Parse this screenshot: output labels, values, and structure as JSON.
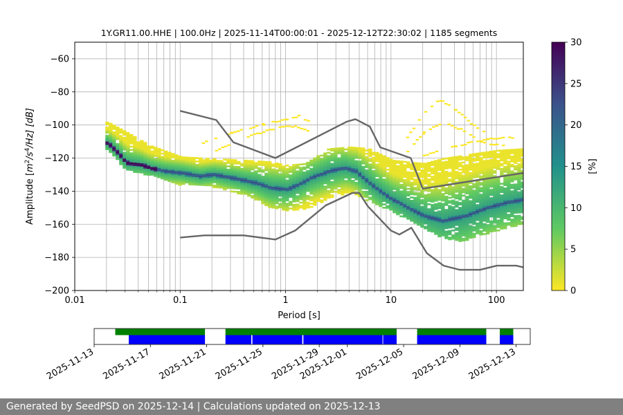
{
  "chart_data": {
    "type": "heatmap",
    "title": "1Y.GR11.00.HHE | 100.0Hz | 2025-11-14T00:00:01 - 2025-12-12T22:30:02 | 1185 segments",
    "xlabel": "Period [s]",
    "ylabel_parts": {
      "prefix": "Amplitude [",
      "m": "m",
      "two": "2",
      "slash_s": "/s",
      "four": "4",
      "hz": "/Hz] [dB]"
    },
    "x_scale": "log",
    "xlim": [
      0.01,
      180
    ],
    "ylim": [
      -200,
      -50
    ],
    "x_ticks": [
      {
        "v": 0.01,
        "label": "0.01"
      },
      {
        "v": 0.1,
        "label": "0.1"
      },
      {
        "v": 1,
        "label": "1"
      },
      {
        "v": 10,
        "label": "10"
      },
      {
        "v": 100,
        "label": "100"
      }
    ],
    "y_ticks": [
      {
        "v": -60,
        "label": "−60"
      },
      {
        "v": -80,
        "label": "−80"
      },
      {
        "v": -100,
        "label": "−100"
      },
      {
        "v": -120,
        "label": "−120"
      },
      {
        "v": -140,
        "label": "−140"
      },
      {
        "v": -160,
        "label": "−160"
      },
      {
        "v": -180,
        "label": "−180"
      },
      {
        "v": -200,
        "label": "−200"
      }
    ],
    "grid": true,
    "colorbar": {
      "label": "[%]",
      "range": [
        0,
        30
      ],
      "ticks": [
        {
          "v": 0,
          "label": "0"
        },
        {
          "v": 5,
          "label": "5"
        },
        {
          "v": 10,
          "label": "10"
        },
        {
          "v": 15,
          "label": "15"
        },
        {
          "v": 20,
          "label": "20"
        },
        {
          "v": 25,
          "label": "25"
        },
        {
          "v": 30,
          "label": "30"
        }
      ],
      "colormap": "viridis_r"
    },
    "mode_curve": [
      [
        0.02,
        -111
      ],
      [
        0.025,
        -117
      ],
      [
        0.03,
        -123
      ],
      [
        0.04,
        -124
      ],
      [
        0.05,
        -126
      ],
      [
        0.07,
        -128
      ],
      [
        0.1,
        -129
      ],
      [
        0.15,
        -131
      ],
      [
        0.2,
        -130
      ],
      [
        0.3,
        -132
      ],
      [
        0.5,
        -135
      ],
      [
        0.7,
        -138
      ],
      [
        1.0,
        -139
      ],
      [
        1.3,
        -136
      ],
      [
        1.7,
        -132
      ],
      [
        2.5,
        -128
      ],
      [
        3.5,
        -126
      ],
      [
        4.5,
        -128
      ],
      [
        6,
        -135
      ],
      [
        8,
        -141
      ],
      [
        10,
        -145
      ],
      [
        15,
        -151
      ],
      [
        20,
        -155
      ],
      [
        30,
        -158
      ],
      [
        50,
        -155
      ],
      [
        80,
        -150
      ],
      [
        120,
        -147
      ],
      [
        180,
        -145
      ]
    ],
    "band_lower": [
      [
        0.02,
        -115
      ],
      [
        0.03,
        -127
      ],
      [
        0.05,
        -130
      ],
      [
        0.1,
        -136
      ],
      [
        0.2,
        -137
      ],
      [
        0.4,
        -142
      ],
      [
        0.7,
        -150
      ],
      [
        1.0,
        -152
      ],
      [
        1.5,
        -151
      ],
      [
        2.5,
        -144
      ],
      [
        4,
        -140
      ],
      [
        6,
        -146
      ],
      [
        10,
        -152
      ],
      [
        20,
        -162
      ],
      [
        30,
        -168
      ],
      [
        45,
        -170
      ],
      [
        70,
        -166
      ],
      [
        120,
        -162
      ],
      [
        180,
        -159
      ]
    ],
    "band_upper": [
      [
        0.02,
        -98
      ],
      [
        0.03,
        -104
      ],
      [
        0.05,
        -112
      ],
      [
        0.1,
        -119
      ],
      [
        0.2,
        -120
      ],
      [
        0.4,
        -121
      ],
      [
        0.7,
        -122
      ],
      [
        1.0,
        -124
      ],
      [
        1.5,
        -123
      ],
      [
        2.5,
        -114
      ],
      [
        4,
        -113
      ],
      [
        6,
        -114
      ],
      [
        10,
        -121
      ],
      [
        20,
        -123
      ],
      [
        30,
        -120
      ],
      [
        60,
        -117
      ],
      [
        100,
        -115
      ],
      [
        180,
        -114
      ]
    ],
    "sparse_arcs": [
      [
        [
          0.15,
          -111
        ],
        [
          0.3,
          -104
        ],
        [
          0.6,
          -99
        ],
        [
          1.0,
          -96
        ],
        [
          1.3,
          -94
        ],
        [
          1.6,
          -97
        ]
      ],
      [
        [
          0.2,
          -116
        ],
        [
          0.4,
          -107
        ],
        [
          0.8,
          -101
        ],
        [
          1.2,
          -100
        ],
        [
          1.6,
          -103
        ]
      ],
      [
        [
          13,
          -110
        ],
        [
          18,
          -96
        ],
        [
          25,
          -86
        ],
        [
          30,
          -85
        ],
        [
          40,
          -90
        ],
        [
          60,
          -100
        ],
        [
          80,
          -105
        ]
      ],
      [
        [
          14,
          -115
        ],
        [
          20,
          -104
        ],
        [
          30,
          -98
        ],
        [
          45,
          -102
        ],
        [
          70,
          -110
        ],
        [
          120,
          -112
        ]
      ],
      [
        [
          20,
          -118
        ],
        [
          40,
          -112
        ],
        [
          80,
          -108
        ],
        [
          150,
          -107
        ]
      ]
    ],
    "nhnm": [
      [
        0.1,
        -91.5
      ],
      [
        0.22,
        -97
      ],
      [
        0.32,
        -110.5
      ],
      [
        0.8,
        -120
      ],
      [
        3.8,
        -98
      ],
      [
        4.6,
        -96.5
      ],
      [
        6.3,
        -101
      ],
      [
        7.9,
        -113.5
      ],
      [
        15.4,
        -120
      ],
      [
        20,
        -138.5
      ],
      [
        180,
        -129
      ]
    ],
    "nlnm": [
      [
        0.1,
        -168
      ],
      [
        0.17,
        -166.7
      ],
      [
        0.4,
        -166.7
      ],
      [
        0.8,
        -169.2
      ],
      [
        1.24,
        -163.7
      ],
      [
        2.4,
        -148.6
      ],
      [
        4.3,
        -141.1
      ],
      [
        5.0,
        -141.1
      ],
      [
        6.0,
        -149
      ],
      [
        10,
        -163.8
      ],
      [
        12,
        -166.2
      ],
      [
        15.6,
        -162.1
      ],
      [
        21.9,
        -177.5
      ],
      [
        31.6,
        -185
      ],
      [
        45,
        -187.5
      ],
      [
        70,
        -187.5
      ],
      [
        101,
        -185
      ],
      [
        154,
        -185
      ],
      [
        180,
        -186
      ]
    ],
    "availability": {
      "xlim": [
        "2025-11-13",
        "2025-12-14"
      ],
      "date_ticks": [
        {
          "v": "2025-11-13",
          "label": "2025-11-13"
        },
        {
          "v": "2025-11-17",
          "label": "2025-11-17"
        },
        {
          "v": "2025-11-21",
          "label": "2025-11-21"
        },
        {
          "v": "2025-11-25",
          "label": "2025-11-25"
        },
        {
          "v": "2025-11-29",
          "label": "2025-11-29"
        },
        {
          "v": "2025-12-01",
          "label": "2025-12-01"
        },
        {
          "v": "2025-12-05",
          "label": "2025-12-05"
        },
        {
          "v": "2025-12-09",
          "label": "2025-12-09"
        },
        {
          "v": "2025-12-13",
          "label": "2025-12-13"
        }
      ],
      "green_segments": [
        [
          "2025-11-14T12:00",
          "2025-11-20T21:00"
        ],
        [
          "2025-11-22T08:00",
          "2025-12-04T12:00"
        ],
        [
          "2025-12-05T23:00",
          "2025-12-10T21:00"
        ],
        [
          "2025-12-11T20:00",
          "2025-12-12T19:00"
        ]
      ],
      "blue_segments": [
        [
          "2025-11-15T11:00",
          "2025-11-20T21:00"
        ],
        [
          "2025-11-22T08:00",
          "2025-11-24T04:00"
        ],
        [
          "2025-11-24T06:00",
          "2025-11-27T19:00"
        ],
        [
          "2025-11-27T21:00",
          "2025-12-03T12:00"
        ],
        [
          "2025-12-03T13:00",
          "2025-12-04T12:00"
        ],
        [
          "2025-12-05T23:00",
          "2025-12-10T21:00"
        ],
        [
          "2025-12-11T20:00",
          "2025-12-12T19:00"
        ]
      ],
      "colors": {
        "green": "#008000",
        "blue": "#0000ff"
      }
    }
  },
  "footer": {
    "text": "Generated by SeedPSD on 2025-12-14 | Calculations updated on 2025-12-13"
  }
}
